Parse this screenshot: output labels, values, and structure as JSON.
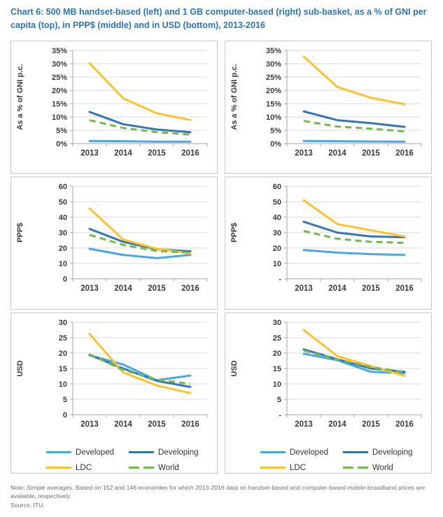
{
  "page": {
    "title": "Chart 6: 500 MB handset-based (left) and 1 GB computer-based (right) sub-basket, as a % of GNI per capita (top), in PPP$ (middle) and in USD (bottom), 2013-2016",
    "note": "Note: Simple averages. Based on 152 and 146 economies for which 2013-2016 data on handset-based and computer-based mobile-broadband prices are available, respectively.",
    "source": "Source: ITU."
  },
  "colors": {
    "title": "#2E74B5",
    "developed": "#4AA7E4",
    "developing": "#3576B5",
    "ldc": "#FDC32E",
    "world": "#75B94E",
    "grid": "#D9D9D9",
    "axis": "#A6A6A6",
    "tick_text": "#3a3a3a"
  },
  "legend": {
    "items": [
      {
        "key": "developed",
        "label": "Developed",
        "dashed": false
      },
      {
        "key": "developing",
        "label": "Developing",
        "dashed": false
      },
      {
        "key": "ldc",
        "label": "LDC",
        "dashed": false
      },
      {
        "key": "world",
        "label": "World",
        "dashed": true
      }
    ]
  },
  "chart_data": [
    {
      "type": "line",
      "panel": "500 MB handset-based, % of GNI per capita",
      "x": [
        "2013",
        "2014",
        "2015",
        "2016"
      ],
      "ylabel": "As a % of GNI p.c.",
      "ylim": [
        0,
        35
      ],
      "yticks": [
        "35%",
        "30%",
        "25%",
        "20%",
        "15%",
        "10%",
        "5%",
        "0%"
      ],
      "grid": true,
      "series": [
        {
          "name": "Developed",
          "key": "developed",
          "values": [
            1.0,
            0.9,
            0.7,
            0.7
          ]
        },
        {
          "name": "Developing",
          "key": "developing",
          "values": [
            11.9,
            7.3,
            5.3,
            4.3
          ]
        },
        {
          "name": "LDC",
          "key": "ldc",
          "values": [
            30.2,
            17.0,
            11.4,
            8.9
          ]
        },
        {
          "name": "World",
          "key": "world",
          "values": [
            8.8,
            5.9,
            4.3,
            3.4
          ]
        }
      ]
    },
    {
      "type": "line",
      "panel": "1 GB computer-based, % of GNI per capita",
      "x": [
        "2013",
        "2014",
        "2015",
        "2016"
      ],
      "ylabel": "As a % of GNI p.c.",
      "ylim": [
        0,
        35
      ],
      "yticks": [
        "35%",
        "30%",
        "25%",
        "20%",
        "15%",
        "10%",
        "5%",
        "0%"
      ],
      "grid": true,
      "series": [
        {
          "name": "Developed",
          "key": "developed",
          "values": [
            1.0,
            0.9,
            0.8,
            0.7
          ]
        },
        {
          "name": "Developing",
          "key": "developing",
          "values": [
            12.1,
            8.8,
            7.7,
            6.3
          ]
        },
        {
          "name": "LDC",
          "key": "ldc",
          "values": [
            32.7,
            21.3,
            17.2,
            14.8
          ]
        },
        {
          "name": "World",
          "key": "world",
          "values": [
            8.5,
            6.4,
            5.6,
            4.6
          ]
        }
      ]
    },
    {
      "type": "line",
      "panel": "500 MB handset-based, PPP$",
      "x": [
        "2013",
        "2014",
        "2015",
        "2016"
      ],
      "ylabel": "PPP$",
      "ylim": [
        0,
        60
      ],
      "yticks": [
        "60",
        "50",
        "40",
        "30",
        "20",
        "10",
        "0"
      ],
      "grid": true,
      "series": [
        {
          "name": "Developed",
          "key": "developed",
          "values": [
            19.5,
            15.5,
            13.4,
            15.5
          ]
        },
        {
          "name": "Developing",
          "key": "developing",
          "values": [
            32.4,
            24.0,
            19.2,
            17.8
          ]
        },
        {
          "name": "LDC",
          "key": "ldc",
          "values": [
            45.6,
            25.5,
            19.5,
            16.5
          ]
        },
        {
          "name": "World",
          "key": "world",
          "values": [
            28.5,
            22.0,
            18.1,
            17.0
          ]
        }
      ]
    },
    {
      "type": "line",
      "panel": "1 GB computer-based, PPP$",
      "x": [
        "2013",
        "2014",
        "2015",
        "2016"
      ],
      "ylabel": "PPP$",
      "ylim": [
        0,
        60
      ],
      "yticks": [
        "60",
        "50",
        "40",
        "30",
        "20",
        "10",
        "-"
      ],
      "grid": true,
      "series": [
        {
          "name": "Developed",
          "key": "developed",
          "values": [
            18.7,
            17.0,
            16.0,
            15.5
          ]
        },
        {
          "name": "Developing",
          "key": "developing",
          "values": [
            37.0,
            30.0,
            27.5,
            27.0
          ]
        },
        {
          "name": "LDC",
          "key": "ldc",
          "values": [
            51.0,
            35.5,
            31.5,
            27.5
          ]
        },
        {
          "name": "World",
          "key": "world",
          "values": [
            31.0,
            26.0,
            24.0,
            23.3
          ]
        }
      ]
    },
    {
      "type": "line",
      "panel": "500 MB handset-based, USD",
      "x": [
        "2013",
        "2014",
        "2015",
        "2016"
      ],
      "ylabel": "USD",
      "ylim": [
        0,
        30
      ],
      "yticks": [
        "30",
        "25",
        "20",
        "15",
        "10",
        "5",
        "0"
      ],
      "grid": true,
      "series": [
        {
          "name": "Developed",
          "key": "developed",
          "values": [
            19.3,
            16.3,
            11.2,
            12.7
          ]
        },
        {
          "name": "Developing",
          "key": "developing",
          "values": [
            19.4,
            15.0,
            11.0,
            9.0
          ]
        },
        {
          "name": "LDC",
          "key": "ldc",
          "values": [
            26.2,
            13.7,
            9.5,
            7.0
          ]
        },
        {
          "name": "World",
          "key": "world",
          "values": [
            19.6,
            14.5,
            11.4,
            10.0
          ]
        }
      ]
    },
    {
      "type": "line",
      "panel": "1 GB computer-based, USD",
      "x": [
        "2013",
        "2014",
        "2015",
        "2016"
      ],
      "ylabel": "USD",
      "ylim": [
        0,
        30
      ],
      "yticks": [
        "30",
        "25",
        "20",
        "15",
        "10",
        "5",
        "-"
      ],
      "grid": true,
      "series": [
        {
          "name": "Developed",
          "key": "developed",
          "values": [
            19.8,
            17.7,
            13.9,
            13.5
          ]
        },
        {
          "name": "Developing",
          "key": "developing",
          "values": [
            21.2,
            18.0,
            15.0,
            13.9
          ]
        },
        {
          "name": "LDC",
          "key": "ldc",
          "values": [
            27.5,
            19.0,
            15.8,
            12.6
          ]
        },
        {
          "name": "World",
          "key": "world",
          "values": [
            20.8,
            18.0,
            15.4,
            13.8
          ]
        }
      ]
    }
  ]
}
